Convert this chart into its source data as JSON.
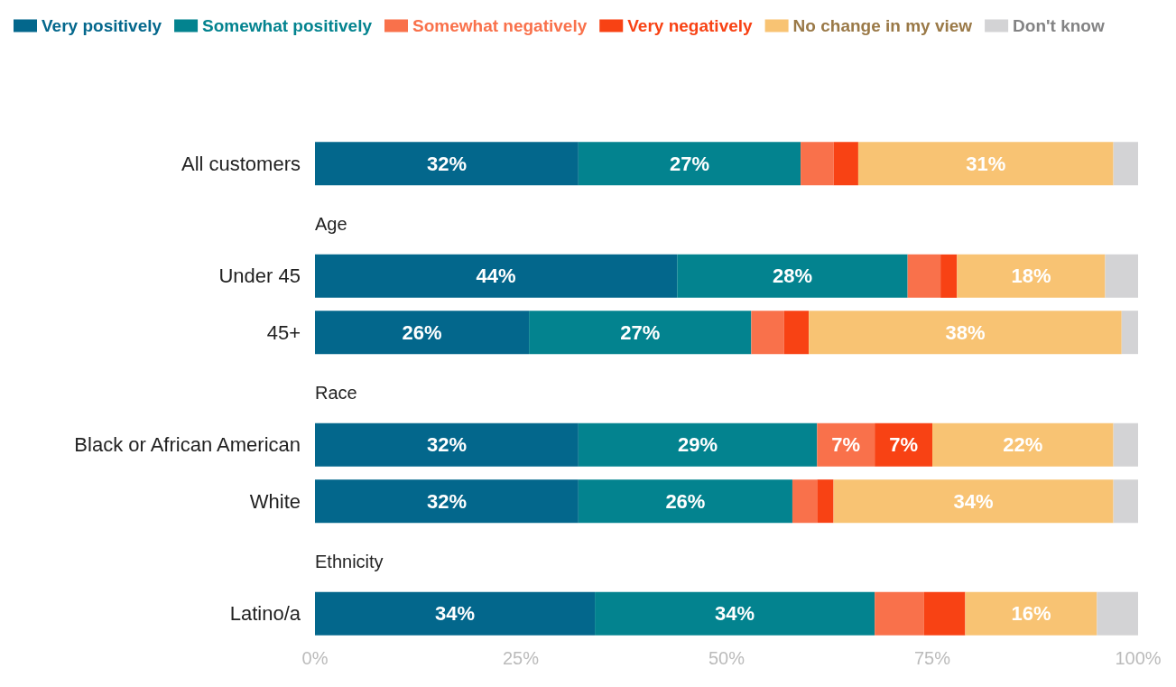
{
  "chart_data": {
    "type": "bar",
    "orientation": "horizontal",
    "stacked": true,
    "legend": "top",
    "categories": [
      "All customers",
      null,
      "Under 45",
      "45+",
      null,
      "Black or African American",
      "White",
      null,
      "Latino/a"
    ],
    "annotations": [
      "Age",
      "Race",
      "Ethnicity"
    ],
    "xlim": [
      0,
      100
    ],
    "xticks": [
      {
        "value": 0,
        "label": "0%"
      },
      {
        "value": 25,
        "label": "25%"
      },
      {
        "value": 50,
        "label": "50%"
      },
      {
        "value": 75,
        "label": "75%"
      },
      {
        "value": 100,
        "label": "100%"
      }
    ],
    "series": [
      {
        "name": "Very positively",
        "color": "#03678c",
        "values": [
          32,
          null,
          44,
          26,
          null,
          32,
          32,
          null,
          34
        ],
        "value_labels": [
          "32%",
          null,
          "44%",
          "26%",
          null,
          "32%",
          "32%",
          null,
          "34%"
        ]
      },
      {
        "name": "Somewhat positively",
        "color": "#03838f",
        "values": [
          27,
          null,
          28,
          27,
          null,
          29,
          26,
          null,
          34
        ],
        "value_labels": [
          "27%",
          null,
          "28%",
          "27%",
          null,
          "29%",
          "26%",
          null,
          "34%"
        ]
      },
      {
        "name": "Somewhat negatively",
        "color": "#f9714b",
        "values": [
          4,
          null,
          4,
          4,
          null,
          7,
          3,
          null,
          6
        ],
        "value_labels": [
          null,
          null,
          null,
          null,
          null,
          "7%",
          null,
          null,
          null
        ]
      },
      {
        "name": "Very negatively",
        "color": "#f84214",
        "values": [
          3,
          null,
          2,
          3,
          null,
          7,
          2,
          null,
          5
        ],
        "value_labels": [
          null,
          null,
          null,
          null,
          null,
          "7%",
          null,
          null,
          null
        ]
      },
      {
        "name": "No change in my view",
        "color": "#f8c373",
        "values": [
          31,
          null,
          18,
          38,
          null,
          22,
          34,
          null,
          16
        ],
        "value_labels": [
          "31%",
          null,
          "18%",
          "38%",
          null,
          "22%",
          "34%",
          null,
          "16%"
        ]
      },
      {
        "name": "Don't know",
        "color": "#d3d3d5",
        "values": [
          3,
          null,
          4,
          2,
          null,
          3,
          3,
          null,
          5
        ],
        "value_labels": [
          null,
          null,
          null,
          null,
          null,
          null,
          null,
          null,
          null
        ]
      }
    ]
  }
}
